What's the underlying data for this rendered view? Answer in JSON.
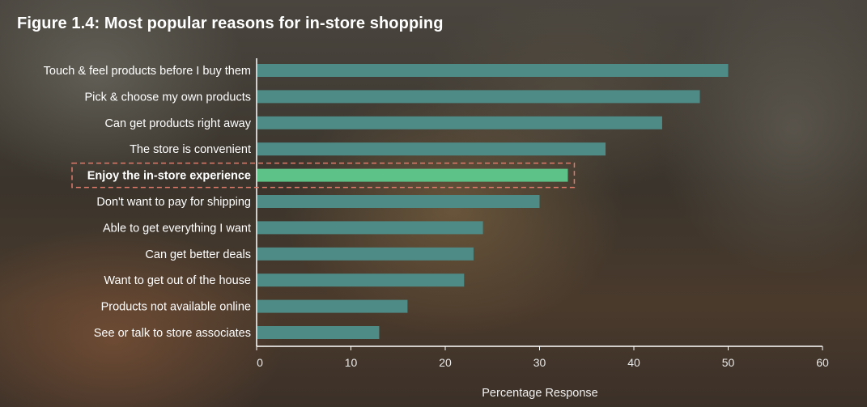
{
  "title": "Figure 1.4: Most popular reasons for in-store shopping",
  "chart_data": {
    "type": "bar",
    "orientation": "horizontal",
    "title": "Figure 1.4: Most popular reasons for in-store shopping",
    "xlabel": "Percentage Response",
    "ylabel": "",
    "xlim": [
      0,
      60
    ],
    "xticks": [
      0,
      10,
      20,
      30,
      40,
      50,
      60
    ],
    "categories": [
      "Touch & feel products before I buy them",
      "Pick & choose my own products",
      "Can get products right away",
      "The store is convenient",
      "Enjoy the in-store experience",
      "Don't want to pay for shipping",
      "Able to get everything I want",
      "Can get better deals",
      "Want to get out of the house",
      "Products not available online",
      "See or talk to store associates"
    ],
    "values": [
      50,
      47,
      43,
      37,
      33,
      30,
      24,
      23,
      22,
      16,
      13
    ],
    "highlighted": "Enjoy the in-store experience",
    "colors": {
      "bar": "#4e8a86",
      "highlight": "#5cc287",
      "highlight_box": "#e07a6a"
    },
    "grid": false
  }
}
